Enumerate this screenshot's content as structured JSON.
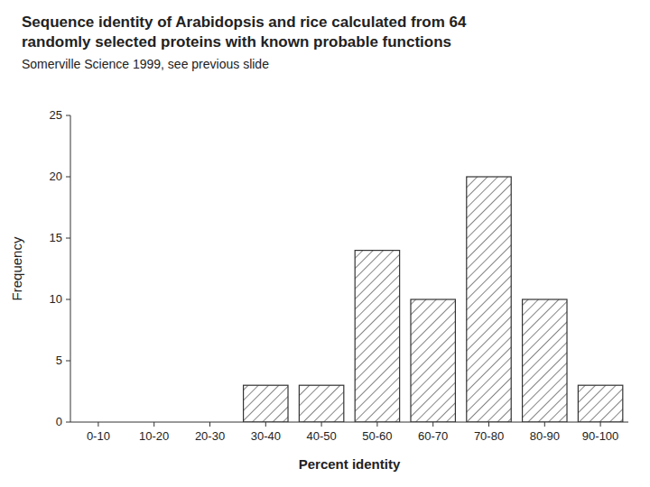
{
  "chart_data": {
    "type": "bar",
    "title": "Sequence identity of Arabidopsis and rice calculated from 64\nrandomly selected proteins with known probable functions",
    "subtitle": "Somerville Science 1999, see previous slide",
    "categories": [
      "0-10",
      "10-20",
      "20-30",
      "30-40",
      "40-50",
      "50-60",
      "60-70",
      "70-80",
      "80-90",
      "90-100"
    ],
    "values": [
      0,
      0,
      0,
      3,
      3,
      14,
      10,
      20,
      10,
      3
    ],
    "x_label": "Percent identity",
    "y_label": "Frequency",
    "color": "white",
    "ylim": [
      0,
      25
    ],
    "yticks": [
      0,
      5,
      10,
      15,
      20,
      25
    ],
    "grid": false
  }
}
